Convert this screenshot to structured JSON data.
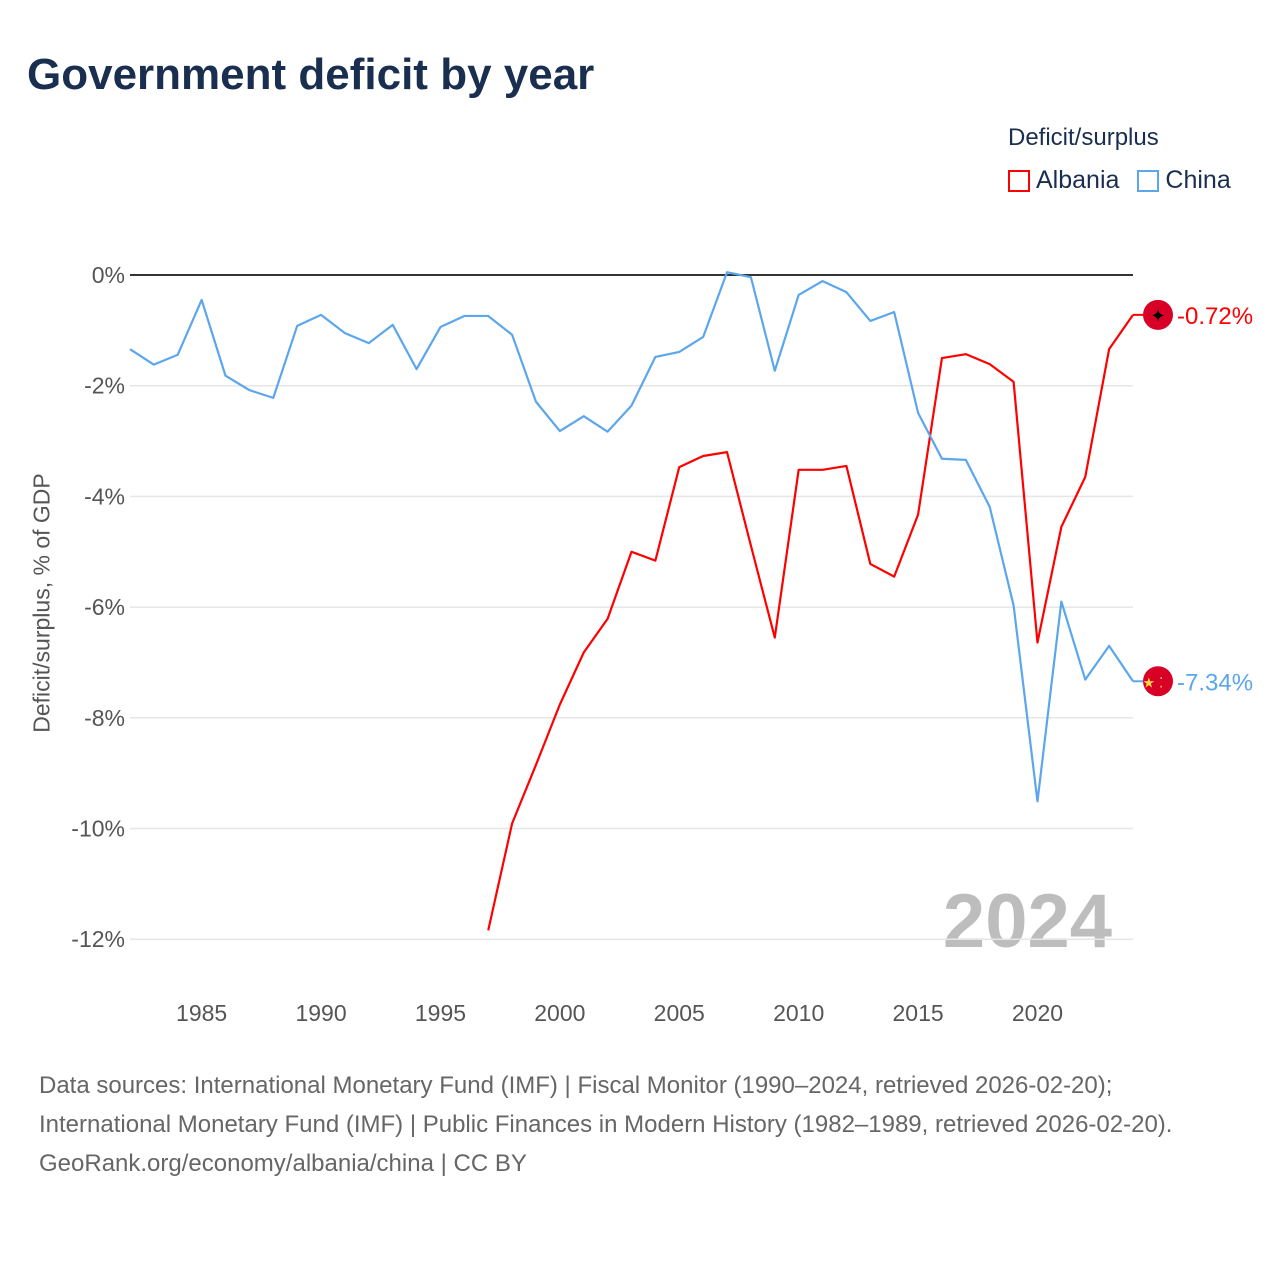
{
  "title": "Government deficit by year",
  "legend": {
    "title": "Deficit/surplus",
    "items": [
      {
        "label": "Albania",
        "color": "#ff0000"
      },
      {
        "label": "China",
        "color": "#5ca6ec"
      }
    ]
  },
  "year_watermark": "2024",
  "footer": {
    "sources": "Data sources: International Monetary Fund (IMF) | Fiscal Monitor (1990–2024, retrieved 2026-02-20); International Monetary Fund (IMF) | Public Finances in Modern History (1982–1989, retrieved 2026-02-20).",
    "credit": "GeoRank.org/economy/albania/china | CC BY"
  },
  "chart_data": {
    "type": "line",
    "title": "Government deficit by year",
    "xlabel": "",
    "ylabel": "Deficit/surplus, % of GDP",
    "xlim": [
      1982,
      2024
    ],
    "ylim": [
      -12.7,
      0.6
    ],
    "xticks": [
      1985,
      1990,
      1995,
      2000,
      2005,
      2010,
      2015,
      2020
    ],
    "yticks": [
      {
        "v": 0,
        "label": "0%"
      },
      {
        "v": -2,
        "label": "-2%"
      },
      {
        "v": -4,
        "label": "-4%"
      },
      {
        "v": -6,
        "label": "-6%"
      },
      {
        "v": -8,
        "label": "-8%"
      },
      {
        "v": -10,
        "label": "-10%"
      },
      {
        "v": -12,
        "label": "-12%"
      }
    ],
    "series": [
      {
        "name": "Albania",
        "color": "#ff0000",
        "end_label": "-0.72%",
        "start_year": 1997,
        "values": [
          -11.84,
          -9.91,
          -8.85,
          -7.76,
          -6.82,
          -6.21,
          -5.0,
          -5.16,
          -3.47,
          -3.27,
          -3.2,
          -4.89,
          -6.55,
          -3.52,
          -3.52,
          -3.45,
          -5.22,
          -5.45,
          -4.33,
          -1.5,
          -1.43,
          -1.61,
          -1.93,
          -6.64,
          -4.55,
          -3.65,
          -1.34,
          -0.72
        ]
      },
      {
        "name": "China",
        "color": "#5ca6ec",
        "end_label": "-7.34%",
        "start_year": 1982,
        "values": [
          -1.34,
          -1.62,
          -1.44,
          -0.45,
          -1.82,
          -2.08,
          -2.22,
          -0.92,
          -0.72,
          -1.05,
          -1.23,
          -0.9,
          -1.7,
          -0.94,
          -0.74,
          -0.74,
          -1.08,
          -2.29,
          -2.82,
          -2.55,
          -2.83,
          -2.36,
          -1.48,
          -1.39,
          -1.12,
          0.05,
          -0.04,
          -1.73,
          -0.36,
          -0.11,
          -0.31,
          -0.83,
          -0.67,
          -2.49,
          -3.32,
          -3.34,
          -4.19,
          -5.97,
          -9.51,
          -5.9,
          -7.31,
          -6.7,
          -7.34
        ]
      }
    ]
  }
}
